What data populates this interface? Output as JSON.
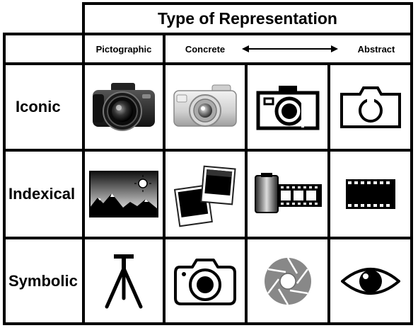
{
  "title": "Type of Representation",
  "columns": {
    "pictographic": "Pictographic",
    "concrete": "Concrete",
    "abstract": "Abstract"
  },
  "rows": [
    {
      "label": "Iconic",
      "icons": [
        "dslr-camera-photo-icon",
        "compact-camera-photo-icon",
        "camera-outline-icon",
        "camera-minimal-outline-icon"
      ]
    },
    {
      "label": "Indexical",
      "icons": [
        "landscape-photo-icon",
        "polaroid-photos-icon",
        "film-roll-icon",
        "film-strip-icon"
      ]
    },
    {
      "label": "Symbolic",
      "icons": [
        "tripod-icon",
        "camera-sketch-icon",
        "aperture-icon",
        "eye-icon"
      ]
    }
  ]
}
